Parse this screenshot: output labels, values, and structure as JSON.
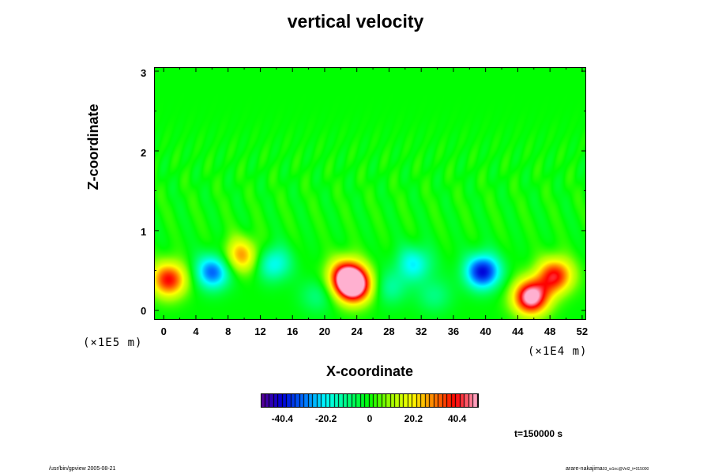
{
  "chart_data": {
    "type": "heatmap",
    "title": "vertical velocity",
    "xlabel": "X-coordinate",
    "ylabel": "Z-coordinate",
    "x_unit": "(×1E4 m)",
    "y_unit": "(×1E5 m)",
    "x_ticks": [
      "0",
      "4",
      "8",
      "12",
      "16",
      "20",
      "24",
      "28",
      "32",
      "36",
      "40",
      "44",
      "48",
      "52"
    ],
    "y_ticks": [
      "0",
      "1",
      "2",
      "3"
    ],
    "xlim": [
      -1.2,
      52.5
    ],
    "ylim": [
      -0.12,
      3.05
    ],
    "colorbar": {
      "ticks": [
        "-40.4",
        "-20.2",
        "0",
        "20.2",
        "40.4"
      ],
      "range": [
        -50,
        50
      ],
      "colors": [
        "#5a0090",
        "#0000d8",
        "#0070ff",
        "#00ffff",
        "#00ff80",
        "#00ff00",
        "#a0ff00",
        "#ffff00",
        "#ff8000",
        "#ff0000",
        "#ffb0d0"
      ]
    },
    "features": [
      {
        "x": 23.5,
        "z": 0.32,
        "value": 55
      },
      {
        "x": 22.5,
        "z": 0.45,
        "value": 40
      },
      {
        "x": 45.5,
        "z": 0.18,
        "value": 55
      },
      {
        "x": 48.5,
        "z": 0.45,
        "value": 40
      },
      {
        "x": 0.5,
        "z": 0.4,
        "value": 40
      },
      {
        "x": 9.5,
        "z": 0.7,
        "value": 28
      },
      {
        "x": 6.0,
        "z": 0.5,
        "value": -32
      },
      {
        "x": 39.5,
        "z": 0.5,
        "value": -40
      },
      {
        "x": 13.5,
        "z": 0.6,
        "value": -20
      },
      {
        "x": 31.0,
        "z": 0.6,
        "value": -20
      },
      {
        "x": 28.0,
        "z": 0.3,
        "value": -12
      },
      {
        "x": 19.0,
        "z": 0.2,
        "value": -10
      },
      {
        "x": 33.5,
        "z": 0.2,
        "value": -10
      }
    ],
    "time_label": "t=150000 s"
  },
  "footer": {
    "left": "/usr/bin/gpview 2005-08-21",
    "right_main": "arare-nakajima",
    "right_sub": "03_w1nc@Vel2_t=015000"
  }
}
